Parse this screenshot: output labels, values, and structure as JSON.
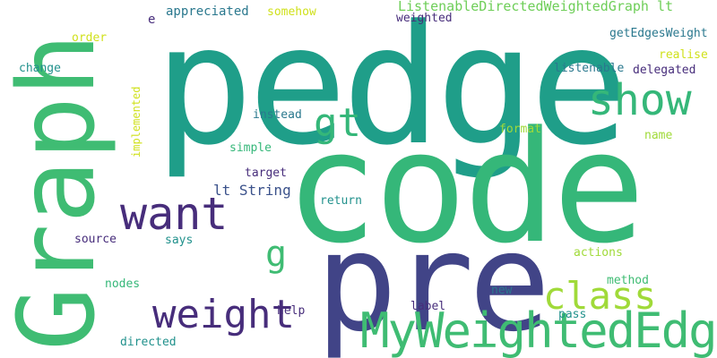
{
  "palette": {
    "background": "#ffffff",
    "teal_dark": "#1f9e89",
    "green": "#35b779",
    "green_mid": "#3fbc73",
    "navy": "#414487",
    "purple": "#472d7b",
    "indigo": "#3b528b",
    "teal_blue": "#2a788e",
    "teal": "#21918c",
    "lime": "#a0da39",
    "yellow": "#d0e11c",
    "light_green": "#6ece58"
  },
  "words": {
    "pedge": "pedge",
    "code": "code",
    "graph": "Graph",
    "pre": "pre",
    "show": "show",
    "gt": "gt",
    "want": "want",
    "class": "class",
    "weight": "weight",
    "my_weighted_edge": "MyWeightedEdge",
    "g": "g",
    "lt_string": "lt String",
    "listenable_graph_lt": "ListenableDirectedWeightedGraph lt",
    "e": "e",
    "appreciated": "appreciated",
    "somehow": "somehow",
    "weighted": "weighted",
    "order": "order",
    "get_edges_weight": "getEdgesWeight",
    "realise": "realise",
    "change": "change",
    "listenable": "listenable",
    "delegated": "delegated",
    "implemented": "implemented",
    "instead": "instead",
    "format": "format",
    "name": "name",
    "simple": "simple",
    "target": "target",
    "return": "return",
    "source": "source",
    "says": "says",
    "actions": "actions",
    "nodes": "nodes",
    "method": "method",
    "help": "help",
    "label": "label",
    "new": "new",
    "pass": "pass",
    "directed": "directed"
  }
}
